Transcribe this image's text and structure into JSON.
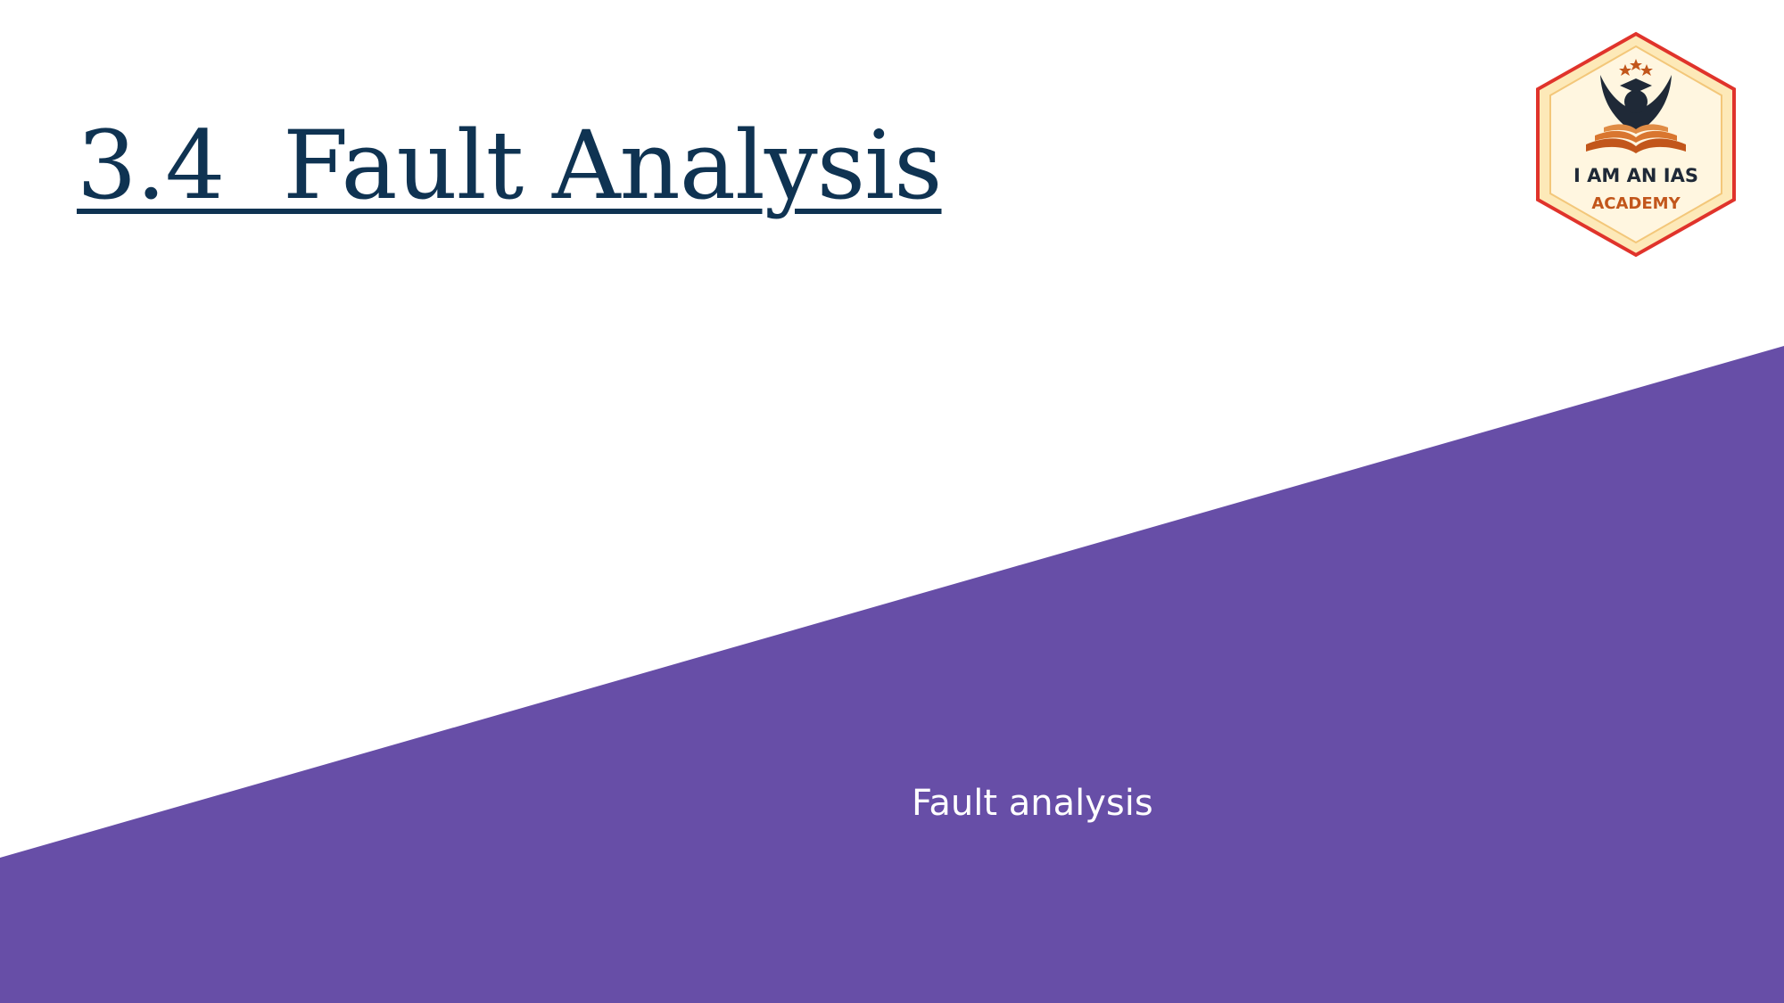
{
  "slide": {
    "title": "3.4  Fault Analysis",
    "caption": "Fault analysis"
  },
  "logo": {
    "line1": "I AM AN IAS",
    "line2": "ACADEMY",
    "icon": "graduate-book-icon"
  },
  "colors": {
    "title": "#0f3352",
    "band": "#674ea7",
    "caption": "#ffffff",
    "logo_border": "#e0332b",
    "logo_fill": "#fff6e0",
    "logo_accent": "#c2561b"
  }
}
